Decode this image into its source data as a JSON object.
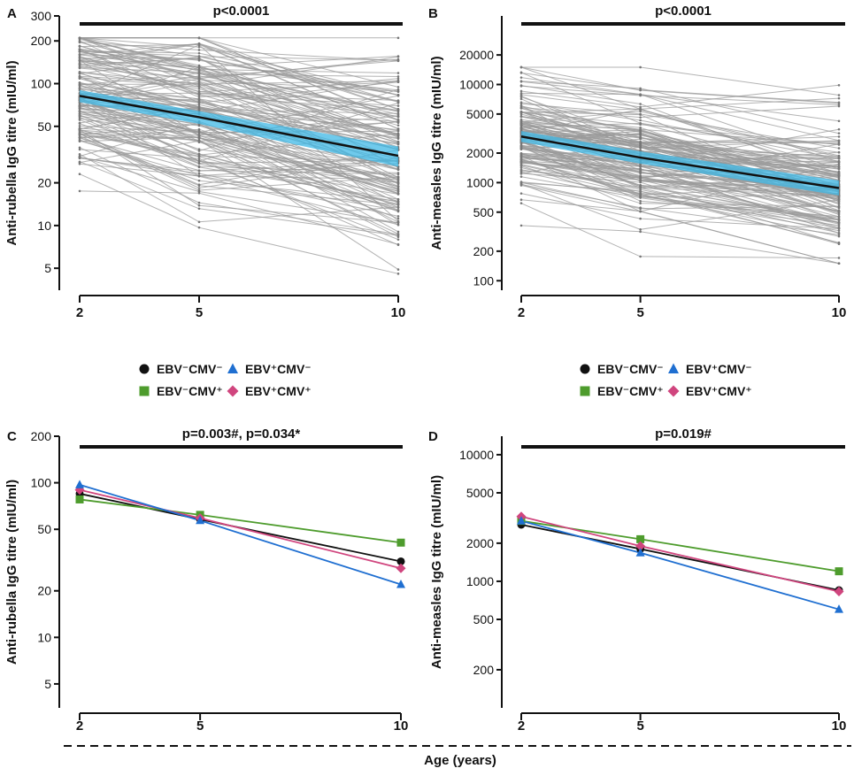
{
  "x_axis_label": "Age (years)",
  "colors": {
    "individual": "#9a9a9a",
    "mean_line": "#111111",
    "ci_band": "#3fb8e6",
    "EBV-CMV-": "#111111",
    "EBV+CMV-": "#1f6fd1",
    "EBV-CMV+": "#4e9c2d",
    "EBV+CMV+": "#d0457e"
  },
  "legend": [
    {
      "key": "EBV-CMV-",
      "label": "EBV⁻CMV⁻",
      "marker": "circle"
    },
    {
      "key": "EBV+CMV-",
      "label": "EBV⁺CMV⁻",
      "marker": "triangle"
    },
    {
      "key": "EBV-CMV+",
      "label": "EBV⁻CMV⁺",
      "marker": "square"
    },
    {
      "key": "EBV+CMV+",
      "label": "EBV⁺CMV⁺",
      "marker": "diamond"
    }
  ],
  "chart_data": [
    {
      "panel": "A",
      "type": "line",
      "title": "p<0.0001",
      "ylabel": "Anti-rubella IgG titre (mIU/ml)",
      "xlabel": "Age (years)",
      "yscale": "log",
      "ylim": [
        3.5,
        300
      ],
      "yticks": [
        5,
        10,
        20,
        50,
        100,
        200,
        300
      ],
      "x": [
        2,
        5,
        10
      ],
      "xticks": [
        "2",
        "5",
        "10"
      ],
      "mean": [
        82,
        58,
        31
      ],
      "ci_lower": [
        74,
        52,
        26
      ],
      "ci_upper": [
        90,
        64,
        36
      ],
      "individual_series_count": 150,
      "individual_range": [
        4,
        210
      ],
      "individual_center_at_2": 82,
      "individual_spread_log10": 0.28
    },
    {
      "panel": "B",
      "type": "line",
      "title": "p<0.0001",
      "ylabel": "Anti-measles IgG titre (mIU/ml)",
      "xlabel": "Age (years)",
      "yscale": "log",
      "ylim": [
        80,
        50000
      ],
      "yticks": [
        100,
        200,
        500,
        1000,
        2000,
        5000,
        10000,
        20000
      ],
      "x": [
        2,
        5,
        10
      ],
      "xticks": [
        "2",
        "5",
        "10"
      ],
      "mean": [
        2950,
        1800,
        880
      ],
      "ci_lower": [
        2600,
        1560,
        740
      ],
      "ci_upper": [
        3350,
        2080,
        1050
      ],
      "individual_series_count": 150,
      "individual_range": [
        150,
        15000
      ],
      "individual_center_at_2": 2900,
      "individual_spread_log10": 0.32
    },
    {
      "panel": "C",
      "type": "line",
      "title": "p=0.003#, p=0.034*",
      "ylabel": "Anti-rubella IgG titre (mIU/ml)",
      "xlabel": "Age (years)",
      "yscale": "log",
      "ylim": [
        3.5,
        200
      ],
      "yticks": [
        5,
        10,
        20,
        50,
        100,
        200
      ],
      "x": [
        2,
        5,
        10
      ],
      "xticks": [
        "2",
        "5",
        "10"
      ],
      "series": [
        {
          "name": "EBV-CMV-",
          "values": [
            85,
            58,
            31
          ]
        },
        {
          "name": "EBV+CMV-",
          "values": [
            97,
            57,
            22
          ]
        },
        {
          "name": "EBV-CMV+",
          "values": [
            78,
            62,
            41
          ]
        },
        {
          "name": "EBV+CMV+",
          "values": [
            90,
            59,
            28
          ]
        }
      ]
    },
    {
      "panel": "D",
      "type": "line",
      "title": "p=0.019#",
      "ylabel": "Anti-measles IgG titre (mIU/ml)",
      "xlabel": "Age (years)",
      "yscale": "log",
      "ylim": [
        100,
        14000
      ],
      "yticks": [
        200,
        500,
        1000,
        2000,
        5000,
        10000
      ],
      "x": [
        2,
        5,
        10
      ],
      "xticks": [
        "2",
        "5",
        "10"
      ],
      "series": [
        {
          "name": "EBV-CMV-",
          "values": [
            2800,
            1800,
            850
          ]
        },
        {
          "name": "EBV+CMV-",
          "values": [
            3000,
            1680,
            600
          ]
        },
        {
          "name": "EBV-CMV+",
          "values": [
            3000,
            2150,
            1200
          ]
        },
        {
          "name": "EBV+CMV+",
          "values": [
            3250,
            1900,
            830
          ]
        }
      ]
    }
  ]
}
